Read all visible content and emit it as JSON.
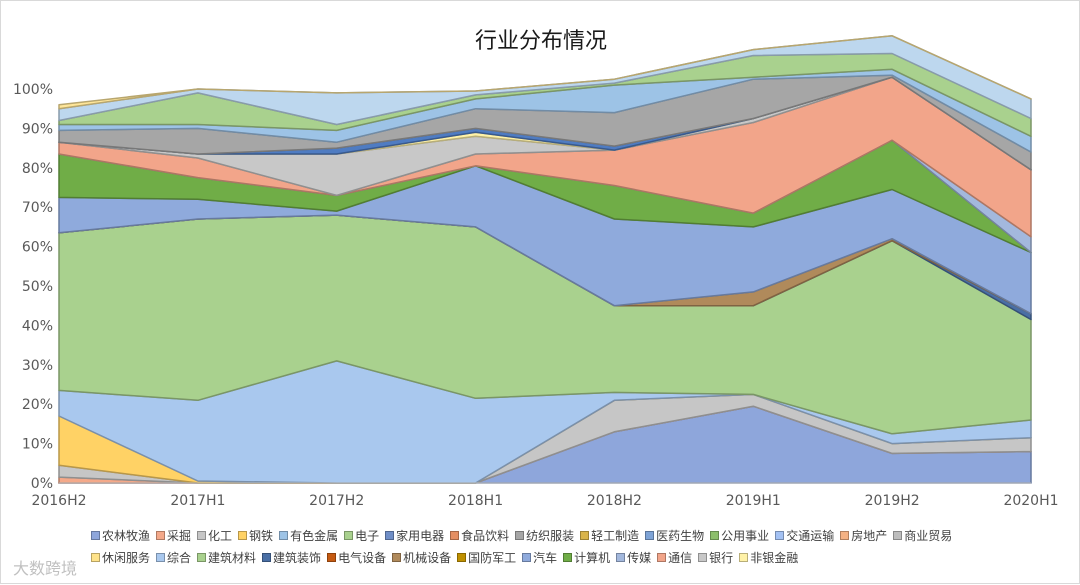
{
  "watermark": "大数跨境",
  "chart_data": {
    "type": "area",
    "stacking": "percent",
    "title": "行业分布情况",
    "x": [
      "2016H2",
      "2017H1",
      "2017H2",
      "2018H1",
      "2018H2",
      "2019H1",
      "2019H2",
      "2020H1"
    ],
    "y_ticks": [
      "0%",
      "10%",
      "20%",
      "30%",
      "40%",
      "50%",
      "60%",
      "70%",
      "80%",
      "90%",
      "100%"
    ],
    "ylim": [
      0,
      100
    ],
    "legend_position": "bottom",
    "series": [
      {
        "name": "农林牧渔",
        "color": "#8ea6db",
        "values": [
          0,
          0,
          0,
          0,
          13,
          19.5,
          7.5,
          8
        ]
      },
      {
        "name": "采掘",
        "color": "#f4a98a",
        "values": [
          1.5,
          0,
          0,
          0,
          0,
          0,
          0,
          0
        ]
      },
      {
        "name": "化工",
        "color": "#c6c6c6",
        "values": [
          3,
          0,
          0,
          0,
          8,
          3,
          2.5,
          3.5
        ]
      },
      {
        "name": "钢铁",
        "color": "#ffd265",
        "values": [
          12.5,
          0.5,
          0,
          0,
          0,
          0,
          0,
          0
        ]
      },
      {
        "name": "有色金属",
        "color": "#9dc3e6",
        "values": [
          0,
          0,
          0,
          0,
          0,
          0,
          0,
          0
        ]
      },
      {
        "name": "电子",
        "color": "#a9d18e",
        "values": [
          0,
          0,
          0,
          0,
          0,
          0,
          0,
          0
        ]
      },
      {
        "name": "家用电器",
        "color": "#6f8ec7",
        "values": [
          0,
          0,
          0,
          0,
          0,
          0,
          0,
          0
        ]
      },
      {
        "name": "食品饮料",
        "color": "#e58f63",
        "values": [
          0,
          0,
          0,
          0,
          0,
          0,
          0,
          0
        ]
      },
      {
        "name": "纺织服装",
        "color": "#a6a6a6",
        "values": [
          0,
          0,
          0,
          0,
          0,
          0,
          0,
          0
        ]
      },
      {
        "name": "轻工制造",
        "color": "#d9b44a",
        "values": [
          0,
          0,
          0,
          0,
          0,
          0,
          0,
          0
        ]
      },
      {
        "name": "医药生物",
        "color": "#7ea3d6",
        "values": [
          0,
          0,
          0,
          0,
          0,
          0,
          0,
          0
        ]
      },
      {
        "name": "公用事业",
        "color": "#8cbf6a",
        "values": [
          0,
          0,
          0,
          0,
          0,
          0,
          0,
          0
        ]
      },
      {
        "name": "交通运输",
        "color": "#a4c2f4",
        "values": [
          0,
          0,
          0,
          0,
          0,
          0,
          0,
          0
        ]
      },
      {
        "name": "房地产",
        "color": "#f4b183",
        "values": [
          0,
          0,
          0,
          0,
          0,
          0,
          0,
          0
        ]
      },
      {
        "name": "商业贸易",
        "color": "#bdbdbd",
        "values": [
          0,
          0,
          0,
          0,
          0,
          0,
          0,
          0
        ]
      },
      {
        "name": "休闲服务",
        "color": "#ffe38a",
        "values": [
          0,
          0,
          0,
          0,
          0,
          0,
          0,
          0
        ]
      },
      {
        "name": "综合",
        "color": "#a9c8ee",
        "values": [
          6.5,
          20.5,
          31,
          21.5,
          2,
          0,
          2.5,
          4.5
        ]
      },
      {
        "name": "建筑材料",
        "color": "#a9d18e",
        "values": [
          40,
          46,
          37,
          43.5,
          22,
          22.5,
          49,
          25.5
        ]
      },
      {
        "name": "建筑装饰",
        "color": "#4a6fa5",
        "values": [
          0,
          0,
          0,
          0,
          0,
          0,
          0,
          1.5
        ]
      },
      {
        "name": "电气设备",
        "color": "#c55a11",
        "values": [
          0,
          0,
          0,
          0,
          0,
          0,
          0,
          0
        ]
      },
      {
        "name": "机械设备",
        "color": "#b08a5b",
        "values": [
          0,
          0,
          0,
          0,
          0,
          3.5,
          0.5,
          0
        ]
      },
      {
        "name": "国防军工",
        "color": "#bf9000",
        "values": [
          0,
          0,
          0,
          0,
          0,
          0,
          0,
          0
        ]
      },
      {
        "name": "汽车",
        "color": "#8faadc",
        "values": [
          9,
          5,
          1,
          15.5,
          22,
          16.5,
          12.5,
          15.5
        ]
      },
      {
        "name": "计算机",
        "color": "#70ad47",
        "values": [
          11,
          5.5,
          4,
          0,
          8.5,
          3.5,
          12.5,
          0
        ]
      },
      {
        "name": "传媒",
        "color": "#a3b8dd",
        "values": [
          0,
          0,
          0,
          0,
          0,
          0,
          0,
          4
        ]
      },
      {
        "name": "通信",
        "color": "#f2a58a",
        "values": [
          3,
          5,
          0,
          3,
          9,
          23,
          16,
          17
        ]
      },
      {
        "name": "银行",
        "color": "#c8c8c8",
        "values": [
          0,
          1,
          10.5,
          4.5,
          0,
          1,
          0,
          0
        ]
      },
      {
        "name": "非银金融",
        "color": "#fff2a8",
        "values": [
          0,
          0,
          0,
          1,
          0,
          0,
          0,
          0
        ]
      },
      {
        "name": "",
        "color": "#4f7cc2",
        "values": [
          0,
          0,
          1.5,
          1,
          1,
          0,
          0,
          0
        ]
      },
      {
        "name": "",
        "color": "#a6a6a6",
        "values": [
          3,
          6.5,
          1.5,
          5,
          8.5,
          10,
          0.5,
          4.5
        ]
      },
      {
        "name": "",
        "color": "#9dc3e6",
        "values": [
          1.5,
          1,
          3,
          2.5,
          7,
          0.5,
          1.5,
          4
        ]
      },
      {
        "name": "",
        "color": "#a9d18e",
        "values": [
          1,
          8,
          1.5,
          1,
          0.5,
          5.5,
          4,
          4.5
        ]
      },
      {
        "name": "",
        "color": "#bdd7ee",
        "values": [
          3,
          1,
          8,
          1,
          1,
          1.5,
          4.5,
          5
        ]
      },
      {
        "name": "",
        "color": "#ffe699",
        "values": [
          1,
          0,
          0,
          0,
          0,
          0,
          0,
          0
        ]
      }
    ]
  }
}
